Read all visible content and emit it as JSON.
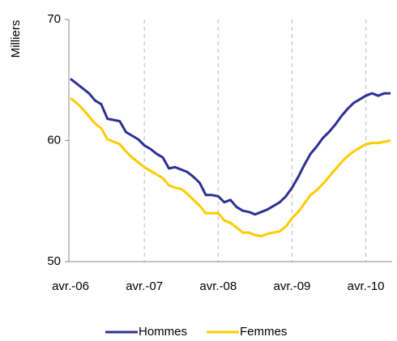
{
  "chart_data": {
    "type": "line",
    "y_label": "Milliers",
    "categories": [
      "avr.-06",
      null,
      null,
      null,
      null,
      null,
      null,
      null,
      null,
      null,
      null,
      null,
      "avr.-07",
      null,
      null,
      null,
      null,
      null,
      null,
      null,
      null,
      null,
      null,
      null,
      "avr.-08",
      null,
      null,
      null,
      null,
      null,
      null,
      null,
      null,
      null,
      null,
      null,
      "avr.-09",
      null,
      null,
      null,
      null,
      null,
      null,
      null,
      null,
      null,
      null,
      null,
      "avr.-10",
      null,
      null,
      null,
      null
    ],
    "series": [
      {
        "name": "Hommes",
        "color": "#2e3192",
        "values": [
          65.1,
          64.7,
          64.3,
          63.9,
          63.3,
          63.0,
          61.8,
          61.7,
          61.6,
          60.7,
          60.4,
          60.1,
          59.6,
          59.3,
          58.9,
          58.6,
          57.7,
          57.8,
          57.6,
          57.4,
          57.0,
          56.5,
          55.5,
          55.5,
          55.4,
          54.9,
          55.1,
          54.5,
          54.2,
          54.1,
          53.9,
          54.1,
          54.3,
          54.6,
          54.9,
          55.4,
          56.1,
          57.0,
          58.0,
          58.9,
          59.5,
          60.2,
          60.7,
          61.3,
          62.0,
          62.6,
          63.1,
          63.4,
          63.7,
          63.9,
          63.7,
          63.9,
          63.9
        ]
      },
      {
        "name": "Femmes",
        "color": "#ffcc00",
        "values": [
          63.5,
          63.1,
          62.6,
          62.0,
          61.4,
          61.0,
          60.1,
          59.9,
          59.7,
          59.1,
          58.6,
          58.2,
          57.8,
          57.5,
          57.2,
          56.9,
          56.3,
          56.1,
          56.0,
          55.6,
          55.1,
          54.6,
          54.0,
          54.0,
          54.0,
          53.4,
          53.2,
          52.8,
          52.4,
          52.4,
          52.2,
          52.1,
          52.3,
          52.4,
          52.5,
          52.9,
          53.6,
          54.1,
          54.8,
          55.5,
          55.9,
          56.4,
          57.0,
          57.6,
          58.2,
          58.7,
          59.1,
          59.4,
          59.7,
          59.8,
          59.8,
          59.9,
          60.0
        ]
      }
    ],
    "ylim": [
      50,
      70
    ],
    "yticks": [
      50,
      60,
      70
    ],
    "grid": "x",
    "legend": "bottom"
  }
}
